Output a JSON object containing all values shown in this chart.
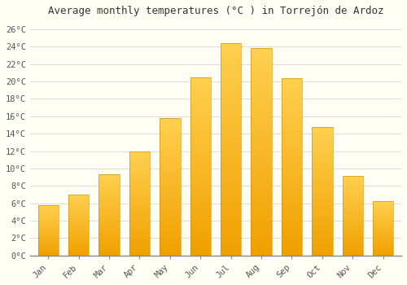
{
  "title": "Average monthly temperatures (°C ) in Torrejón de Ardoz",
  "months": [
    "Jan",
    "Feb",
    "Mar",
    "Apr",
    "May",
    "Jun",
    "Jul",
    "Aug",
    "Sep",
    "Oct",
    "Nov",
    "Dec"
  ],
  "values": [
    5.8,
    7.0,
    9.3,
    12.0,
    15.8,
    20.5,
    24.4,
    23.8,
    20.4,
    14.8,
    9.1,
    6.2
  ],
  "bar_color_dark": "#F0A000",
  "bar_color_light": "#FFD050",
  "ylim": [
    0,
    27
  ],
  "ytick_step": 2,
  "background_color": "#FFFEF5",
  "grid_color": "#DDDDDD",
  "title_fontsize": 9,
  "tick_fontsize": 7.5
}
